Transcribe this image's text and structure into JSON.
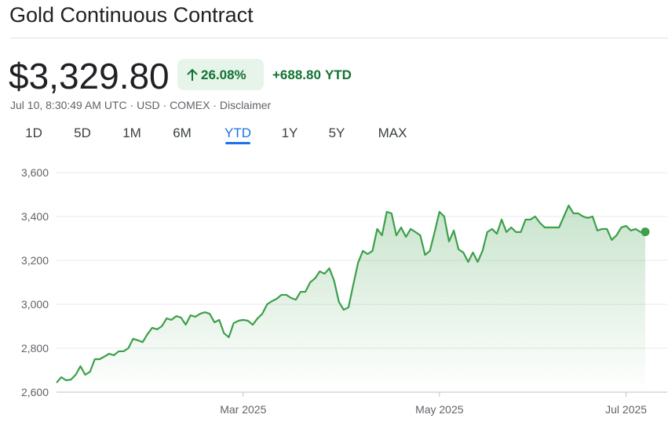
{
  "header": {
    "title": "Gold Continuous Contract",
    "price": "$3,329.80",
    "change_percent": "26.08%",
    "change_value": "+688.80",
    "change_period": "YTD",
    "meta": "Jul 10, 8:30:49 AM UTC · USD · COMEX · Disclaimer",
    "ranges": [
      "1D",
      "5D",
      "1M",
      "6M",
      "YTD",
      "1Y",
      "5Y",
      "MAX"
    ],
    "selected_range": "YTD"
  },
  "chart_data": {
    "type": "line",
    "color": "#3c9f4a",
    "grid": true,
    "categories": [
      null,
      null,
      null,
      null,
      null,
      null,
      null,
      null,
      null,
      null,
      null,
      null,
      null,
      null,
      null,
      null,
      null,
      null,
      null,
      null,
      null,
      null,
      null,
      null,
      null,
      null,
      null,
      null,
      null,
      null,
      null,
      null,
      null,
      null,
      null,
      null,
      null,
      null,
      null,
      "Mar 2025",
      null,
      null,
      null,
      null,
      null,
      null,
      null,
      null,
      null,
      null,
      null,
      null,
      null,
      null,
      null,
      null,
      null,
      null,
      null,
      null,
      null,
      null,
      null,
      null,
      null,
      null,
      null,
      null,
      null,
      null,
      null,
      null,
      null,
      null,
      null,
      null,
      null,
      null,
      null,
      null,
      "May 2025",
      null,
      null,
      null,
      null,
      null,
      null,
      null,
      null,
      null,
      null,
      null,
      null,
      null,
      null,
      null,
      null,
      null,
      null,
      null,
      null,
      null,
      null,
      null,
      null,
      null,
      null,
      null,
      null,
      null,
      null,
      null,
      null,
      null,
      null,
      null,
      null,
      null,
      null,
      "Jul 2025",
      null,
      null,
      null,
      null
    ],
    "values": [
      2643,
      2668,
      2654,
      2657,
      2679,
      2718,
      2679,
      2693,
      2750,
      2750,
      2762,
      2775,
      2768,
      2786,
      2786,
      2800,
      2843,
      2836,
      2828,
      2864,
      2893,
      2886,
      2900,
      2936,
      2929,
      2946,
      2940,
      2907,
      2950,
      2943,
      2957,
      2964,
      2957,
      2918,
      2929,
      2868,
      2850,
      2914,
      2925,
      2929,
      2925,
      2907,
      2936,
      2957,
      3000,
      3014,
      3025,
      3043,
      3043,
      3029,
      3021,
      3057,
      3057,
      3100,
      3118,
      3150,
      3139,
      3164,
      3107,
      3011,
      2975,
      2986,
      3089,
      3189,
      3243,
      3229,
      3243,
      3343,
      3314,
      3421,
      3414,
      3314,
      3350,
      3307,
      3343,
      3329,
      3314,
      3225,
      3243,
      3329,
      3421,
      3400,
      3286,
      3336,
      3250,
      3236,
      3193,
      3236,
      3193,
      3243,
      3329,
      3343,
      3321,
      3386,
      3329,
      3350,
      3329,
      3329,
      3386,
      3386,
      3400,
      3371,
      3350,
      3350,
      3350,
      3350,
      3400,
      3450,
      3414,
      3414,
      3400,
      3393,
      3400,
      3336,
      3343,
      3343,
      3293,
      3314,
      3350,
      3357,
      3336,
      3343,
      3329,
      3329.8
    ],
    "ylim": [
      2600,
      3600
    ],
    "yticks": [
      {
        "value": 2600,
        "label": "2,600"
      },
      {
        "value": 2800,
        "label": "2,800"
      },
      {
        "value": 3000,
        "label": "3,000"
      },
      {
        "value": 3200,
        "label": "3,200"
      },
      {
        "value": 3400,
        "label": "3,400"
      },
      {
        "value": 3600,
        "label": "3,600"
      }
    ]
  }
}
